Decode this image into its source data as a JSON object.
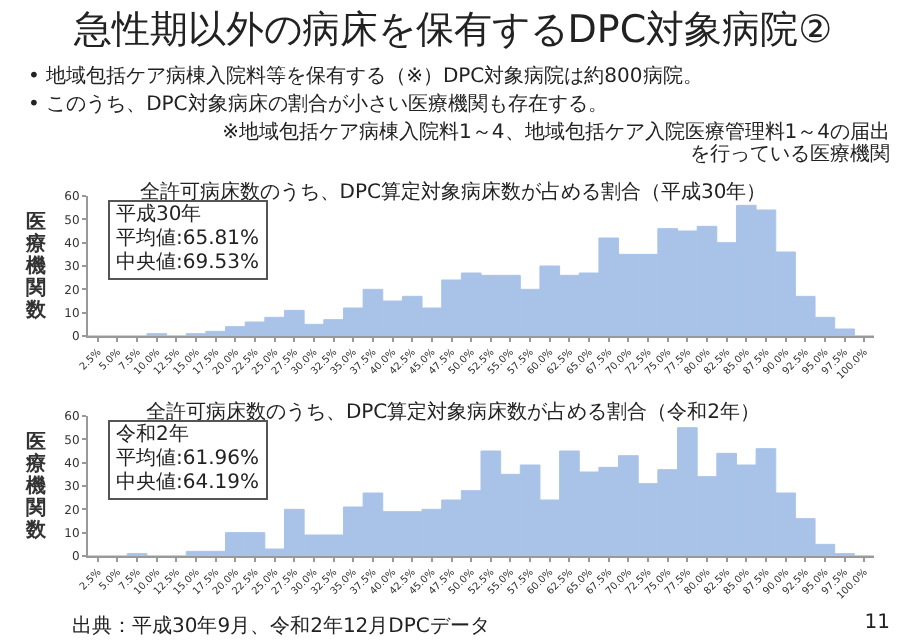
{
  "chart_data": [
    {
      "type": "bar",
      "title": "全許可病床数のうち、DPC算定対象病床数が占める割合（平成30年）",
      "ylabel": "医療機関数",
      "annotations": [
        "急性期以外の病床を保有するDPC対象病院②",
        "• 地域包括ケア病棟入院料等を保有する（※）DPC対象病院は約800病院。",
        "• このうち、DPC対象病床の割合が小さい医療機関も存在する。",
        "※地域包括ケア病棟入院料1～4、地域包括ケア入院医療管理料1～4の届出を行っている医療機関",
        "平成30年",
        "平均値:65.81%",
        "中央値:69.53%"
      ],
      "categories": [
        "2.5%",
        "5.0%",
        "7.5%",
        "10.0%",
        "12.5%",
        "15.0%",
        "17.5%",
        "20.0%",
        "22.5%",
        "25.0%",
        "27.5%",
        "30.0%",
        "32.5%",
        "35.0%",
        "37.5%",
        "40.0%",
        "42.5%",
        "45.0%",
        "47.5%",
        "50.0%",
        "52.5%",
        "55.0%",
        "57.5%",
        "60.0%",
        "62.5%",
        "65.0%",
        "67.5%",
        "70.0%",
        "72.5%",
        "75.0%",
        "77.5%",
        "80.0%",
        "82.5%",
        "85.0%",
        "87.5%",
        "90.0%",
        "92.5%",
        "95.0%",
        "97.5%",
        "100.0%"
      ],
      "values": [
        0,
        0,
        0,
        1,
        0,
        1,
        2,
        4,
        6,
        8,
        11,
        5,
        7,
        12,
        20,
        15,
        17,
        12,
        24,
        27,
        26,
        26,
        20,
        30,
        26,
        27,
        42,
        35,
        35,
        46,
        45,
        47,
        40,
        56,
        54,
        36,
        17,
        8,
        3,
        0
      ],
      "color": "#a9c3e8",
      "ylim": [
        0,
        60
      ],
      "yticks": [
        0,
        10,
        20,
        30,
        40,
        50,
        60
      ]
    },
    {
      "type": "bar",
      "title": "全許可病床数のうち、DPC算定対象病床数が占める割合（令和2年）",
      "ylabel": "医療機関数",
      "annotations": [
        "令和2年",
        "平均値:61.96%",
        "中央値:64.19%",
        "出典：平成30年9月、令和2年12月DPCデータ",
        "11"
      ],
      "categories": [
        "2.5%",
        "5.0%",
        "7.5%",
        "10.0%",
        "12.5%",
        "15.0%",
        "17.5%",
        "20.0%",
        "22.5%",
        "25.0%",
        "27.5%",
        "30.0%",
        "32.5%",
        "35.0%",
        "37.5%",
        "40.0%",
        "42.5%",
        "45.0%",
        "47.5%",
        "50.0%",
        "52.5%",
        "55.0%",
        "57.5%",
        "60.0%",
        "62.5%",
        "65.0%",
        "67.5%",
        "70.0%",
        "72.5%",
        "75.0%",
        "77.5%",
        "80.0%",
        "82.5%",
        "85.0%",
        "87.5%",
        "90.0%",
        "92.5%",
        "95.0%",
        "97.5%",
        "100.0%"
      ],
      "values": [
        0,
        0,
        1,
        0,
        0,
        2,
        2,
        10,
        10,
        3,
        20,
        9,
        9,
        21,
        27,
        19,
        19,
        20,
        24,
        28,
        45,
        35,
        39,
        24,
        45,
        36,
        38,
        43,
        31,
        37,
        55,
        34,
        44,
        39,
        46,
        27,
        16,
        5,
        1,
        0
      ],
      "color": "#a9c3e8",
      "ylim": [
        0,
        60
      ],
      "yticks": [
        0,
        10,
        20,
        30,
        40,
        50,
        60
      ]
    }
  ]
}
